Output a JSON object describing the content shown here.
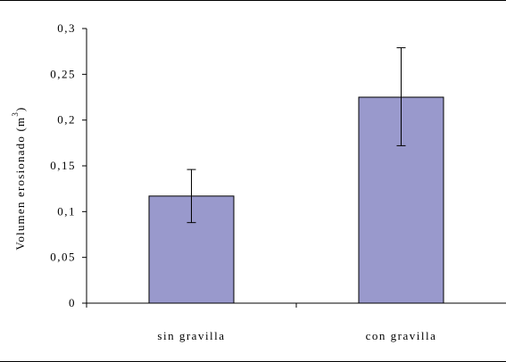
{
  "chart_data": {
    "type": "bar",
    "title": "",
    "xlabel": "",
    "ylabel": "Volumen erosionado (m",
    "ylabel_sup": "3",
    "ylabel_close": ")",
    "categories": [
      "sin gravilla",
      "con gravilla"
    ],
    "values": [
      0.117,
      0.225
    ],
    "error_low": [
      0.088,
      0.172
    ],
    "error_high": [
      0.146,
      0.279
    ],
    "ylim": [
      0,
      0.3
    ],
    "yticks": [
      0,
      0.05,
      0.1,
      0.15,
      0.2,
      0.25,
      0.3
    ],
    "ytick_labels": [
      "0",
      "0,05",
      "0,1",
      "0,15",
      "0,2",
      "0,25",
      "0,3"
    ],
    "grid": false,
    "legend": "none",
    "bar_color": "#9999cc"
  }
}
